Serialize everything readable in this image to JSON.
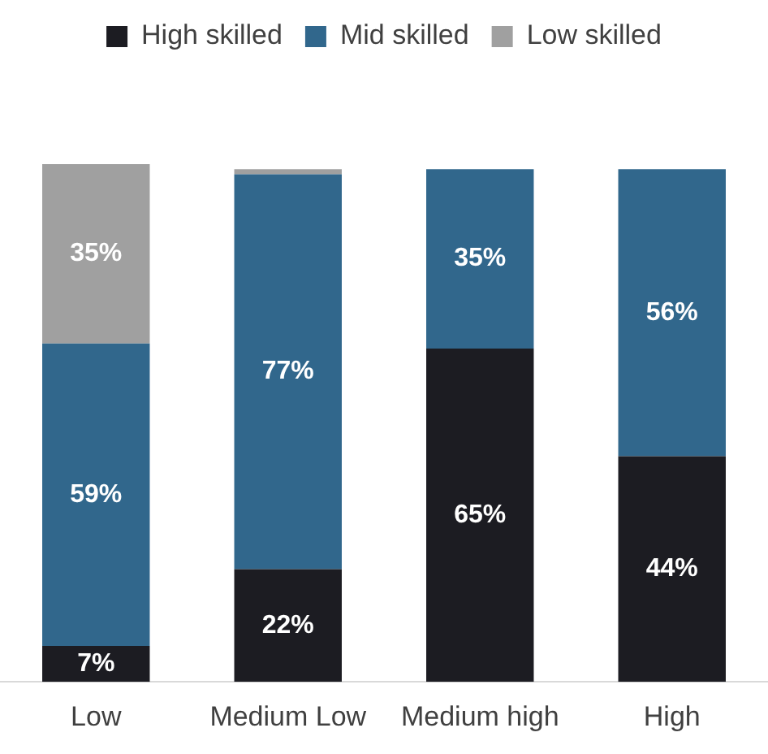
{
  "chart_data": {
    "type": "bar",
    "stacked": true,
    "legend": "top",
    "tick_labels": "x",
    "grid": false,
    "categories": [
      "Low",
      "Medium Low",
      "Medium high",
      "High"
    ],
    "series": [
      {
        "name": "High skilled",
        "color": "#1c1c22",
        "values": [
          7,
          22,
          65,
          44
        ],
        "value_labels": [
          "7%",
          "22%",
          "65%",
          "44%"
        ]
      },
      {
        "name": "Mid skilled",
        "color": "#31678c",
        "values": [
          59,
          77,
          35,
          56
        ],
        "value_labels": [
          "59%",
          "77%",
          "35%",
          "56%"
        ]
      },
      {
        "name": "Low skilled",
        "color": "#a0a0a0",
        "values": [
          35,
          1,
          0,
          0
        ],
        "value_labels": [
          "35%",
          null,
          null,
          null
        ]
      }
    ]
  }
}
